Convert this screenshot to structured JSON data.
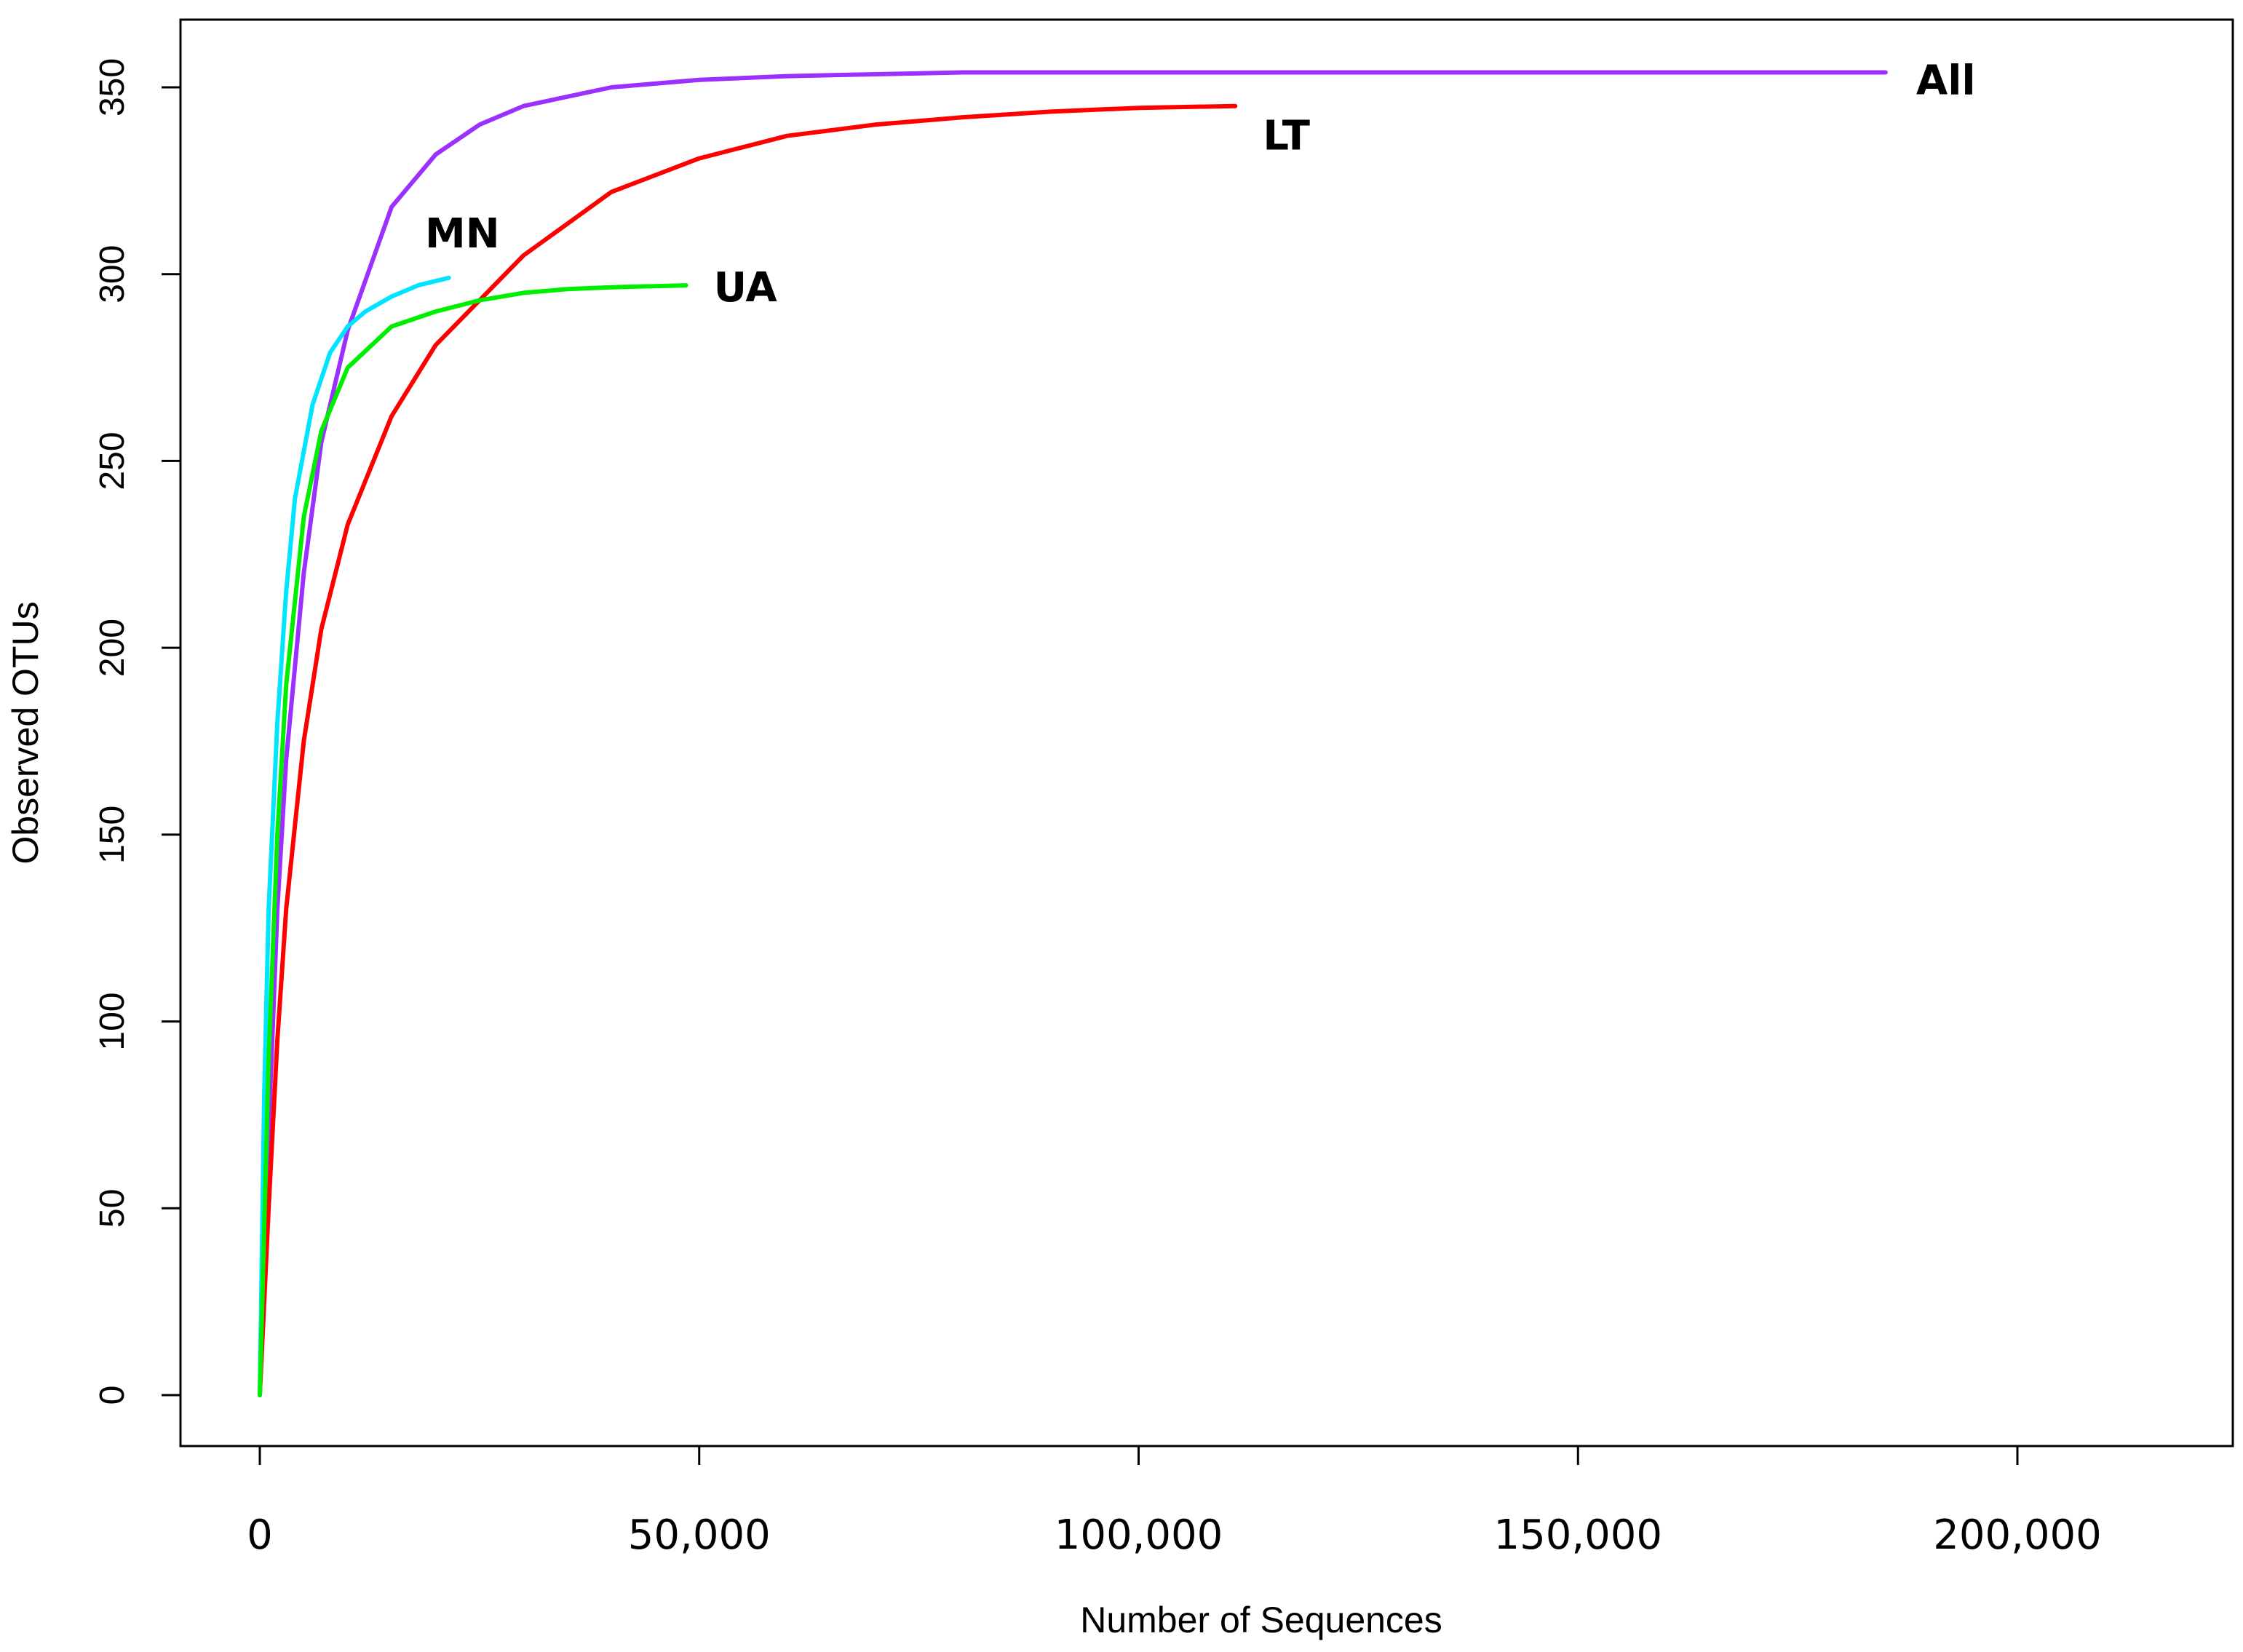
{
  "chart_data": {
    "type": "line",
    "title": "",
    "xlabel": "Number of Sequences",
    "ylabel": "Observed OTUs",
    "xlim": [
      -9000,
      225000
    ],
    "ylim": [
      -13,
      368
    ],
    "x_ticks": [
      0,
      50000,
      100000,
      150000,
      200000
    ],
    "x_tick_labels": [
      "0",
      "50,000",
      "100,000",
      "150,000",
      "200,000"
    ],
    "y_ticks": [
      0,
      50,
      100,
      150,
      200,
      250,
      300,
      350
    ],
    "y_tick_labels": [
      "0",
      "50",
      "100",
      "150",
      "200",
      "250",
      "300",
      "350"
    ],
    "grid": false,
    "legend": "none",
    "series": [
      {
        "name": "All",
        "color": "#9B30FF",
        "x": [
          0,
          1000,
          2000,
          3000,
          5000,
          7000,
          10000,
          15000,
          20000,
          25000,
          30000,
          40000,
          50000,
          60000,
          80000,
          100000,
          130000,
          160000,
          185000
        ],
        "y": [
          0,
          70,
          130,
          170,
          220,
          255,
          285,
          318,
          332,
          340,
          345,
          350,
          352,
          353,
          354,
          354,
          354,
          354,
          354
        ]
      },
      {
        "name": "LT",
        "color": "#FF0000",
        "x": [
          0,
          1000,
          2000,
          3000,
          5000,
          7000,
          10000,
          15000,
          20000,
          25000,
          30000,
          40000,
          50000,
          60000,
          70000,
          80000,
          90000,
          100000,
          111000
        ],
        "y": [
          0,
          50,
          95,
          130,
          175,
          205,
          233,
          262,
          281,
          293,
          305,
          322,
          331,
          337,
          340,
          342,
          343.5,
          344.5,
          345
        ]
      },
      {
        "name": "MN",
        "color": "#00E5FF",
        "x": [
          0,
          500,
          1000,
          2000,
          3000,
          4000,
          6000,
          8000,
          10000,
          12000,
          15000,
          18000,
          21500
        ],
        "y": [
          0,
          80,
          130,
          180,
          215,
          240,
          265,
          279,
          286,
          290,
          294,
          297,
          299
        ]
      },
      {
        "name": "UA",
        "color": "#00EE00",
        "x": [
          0,
          1000,
          2000,
          3000,
          5000,
          7000,
          10000,
          15000,
          20000,
          25000,
          30000,
          35000,
          40000,
          48500
        ],
        "y": [
          0,
          90,
          150,
          190,
          235,
          258,
          275,
          286,
          290,
          293,
          295,
          296,
          296.5,
          297
        ]
      }
    ]
  }
}
